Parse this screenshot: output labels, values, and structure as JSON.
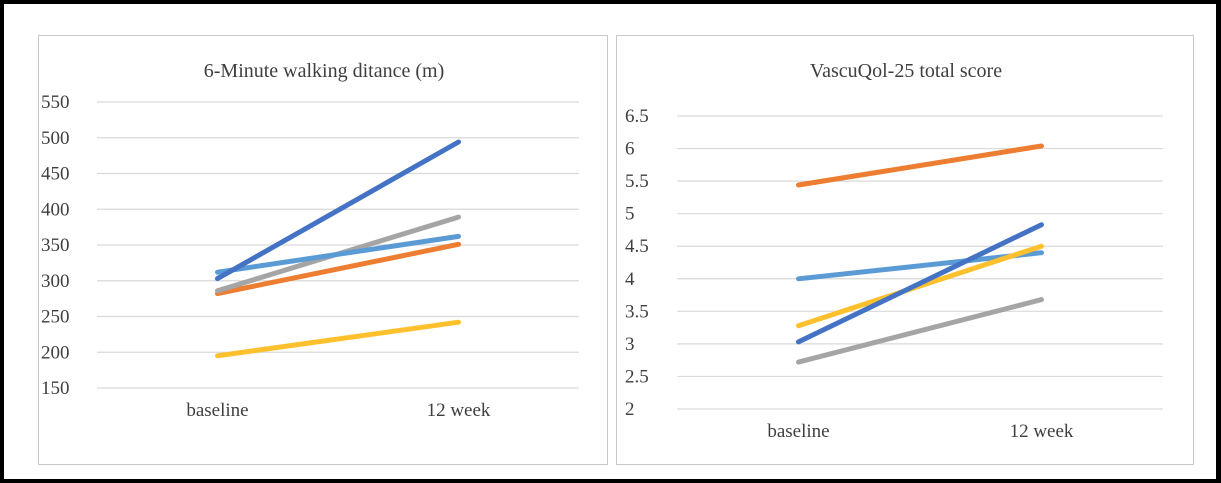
{
  "colors": {
    "gridline": "#d9d9d9",
    "text": "#3f3f3f",
    "frame": "#000000",
    "panel_border": "#c9c9c9"
  },
  "chart_data": [
    {
      "type": "line",
      "title": "6-Minute walking ditance (m)",
      "xlabel": "",
      "ylabel": "",
      "categories": [
        "baseline",
        "12 week"
      ],
      "ylim": [
        150,
        550
      ],
      "yticks": [
        "150",
        "200",
        "250",
        "300",
        "350",
        "400",
        "450",
        "500",
        "550"
      ],
      "grid": true,
      "legend": "none",
      "series": [
        {
          "color": "#ffc02e",
          "values": [
            195,
            242
          ]
        },
        {
          "color": "#ed7d31",
          "values": [
            282,
            351
          ]
        },
        {
          "color": "#a5a5a5",
          "values": [
            286,
            389
          ]
        },
        {
          "color": "#5b9bd5",
          "values": [
            312,
            362
          ]
        },
        {
          "color": "#4472c4",
          "values": [
            303,
            494
          ]
        }
      ]
    },
    {
      "type": "line",
      "title": "VascuQol-25 total score",
      "xlabel": "",
      "ylabel": "",
      "categories": [
        "baseline",
        "12 week"
      ],
      "ylim": [
        2,
        6.5
      ],
      "yticks": [
        "2",
        "2.5",
        "3",
        "3.5",
        "4",
        "4.5",
        "5",
        "5.5",
        "6",
        "6.5"
      ],
      "grid": true,
      "legend": "none",
      "series": [
        {
          "color": "#ed7d31",
          "values": [
            5.44,
            6.04
          ]
        },
        {
          "color": "#5b9bd5",
          "values": [
            4.0,
            4.4
          ]
        },
        {
          "color": "#ffc02e",
          "values": [
            3.28,
            4.5
          ]
        },
        {
          "color": "#4472c4",
          "values": [
            3.03,
            4.83
          ]
        },
        {
          "color": "#a5a5a5",
          "values": [
            2.72,
            3.68
          ]
        }
      ]
    }
  ]
}
